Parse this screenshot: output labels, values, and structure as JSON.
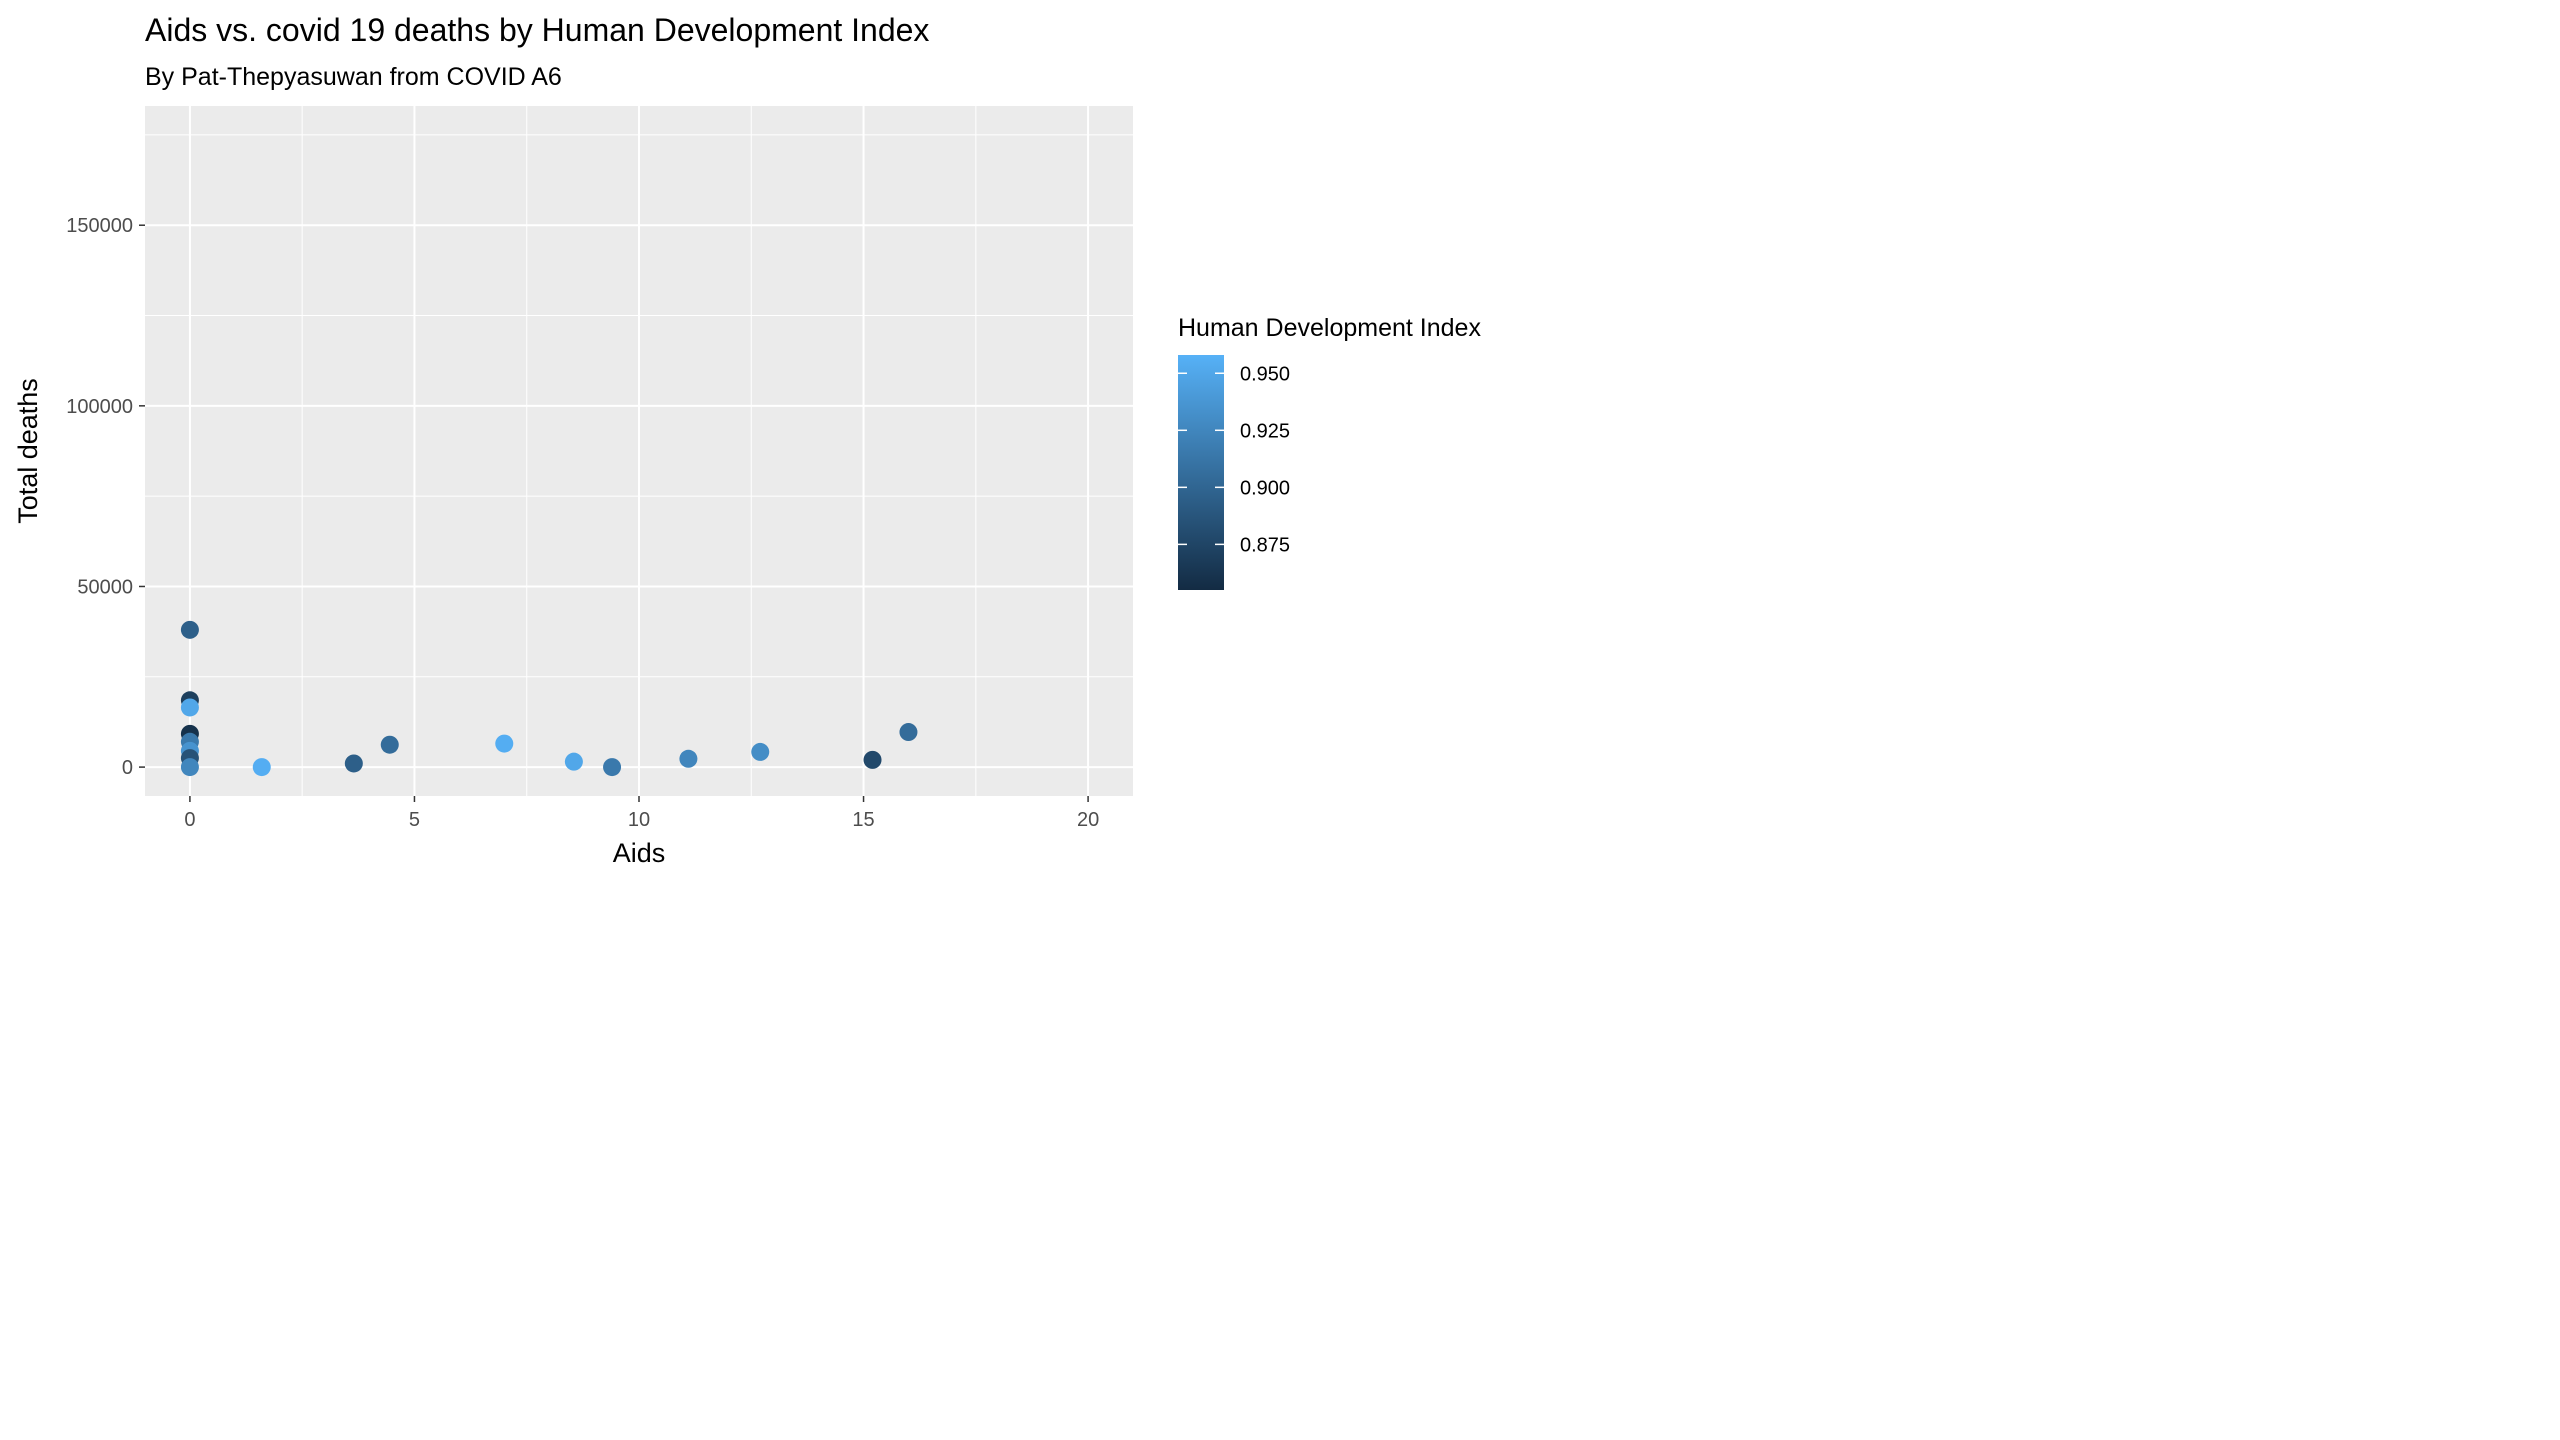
{
  "chart_data": {
    "type": "scatter",
    "title": "Aids vs. covid 19 deaths by Human Development Index",
    "subtitle": "By Pat-Thepyasuwan from COVID A6",
    "xlabel": "Aids",
    "ylabel": "Total deaths",
    "xlim": [
      -1,
      21
    ],
    "ylim": [
      -8000,
      183000
    ],
    "x_ticks": [
      0,
      5,
      10,
      15,
      20
    ],
    "x_tick_labels": [
      "0",
      "5",
      "10",
      "15",
      "20"
    ],
    "y_ticks": [
      0,
      50000,
      100000,
      150000
    ],
    "y_tick_labels": [
      "0",
      "50000",
      "100000",
      "150000"
    ],
    "grid": true,
    "legend": {
      "title": "Human Development Index",
      "placement": "right",
      "type": "continuous",
      "range": [
        0.855,
        0.958
      ],
      "ticks": [
        0.875,
        0.9,
        0.925,
        0.95
      ],
      "tick_labels": [
        "0.875",
        "0.900",
        "0.925",
        "0.950"
      ],
      "colors": {
        "low": "#132b43",
        "high": "#56b1f7"
      }
    },
    "points": [
      {
        "x": 0,
        "y": 38000,
        "hdi": 0.895
      },
      {
        "x": 0,
        "y": 18500,
        "hdi": 0.87
      },
      {
        "x": 0,
        "y": 16500,
        "hdi": 0.95
      },
      {
        "x": 0,
        "y": 9200,
        "hdi": 0.86
      },
      {
        "x": 0,
        "y": 7000,
        "hdi": 0.915
      },
      {
        "x": 0,
        "y": 4500,
        "hdi": 0.935
      },
      {
        "x": 0,
        "y": 2500,
        "hdi": 0.885
      },
      {
        "x": 0,
        "y": 0,
        "hdi": 0.925
      },
      {
        "x": 1.6,
        "y": 0,
        "hdi": 0.955
      },
      {
        "x": 3.65,
        "y": 1000,
        "hdi": 0.895
      },
      {
        "x": 4.45,
        "y": 6200,
        "hdi": 0.905
      },
      {
        "x": 7.0,
        "y": 6500,
        "hdi": 0.955
      },
      {
        "x": 8.55,
        "y": 1500,
        "hdi": 0.95
      },
      {
        "x": 9.4,
        "y": 0,
        "hdi": 0.915
      },
      {
        "x": 11.1,
        "y": 2300,
        "hdi": 0.925
      },
      {
        "x": 12.7,
        "y": 4200,
        "hdi": 0.93
      },
      {
        "x": 15.2,
        "y": 2000,
        "hdi": 0.878
      },
      {
        "x": 16.0,
        "y": 9700,
        "hdi": 0.905
      }
    ]
  },
  "colors": {
    "panel_background": "#ebebeb",
    "grid_major": "#ffffff",
    "tick_text": "#4d4d4d"
  }
}
